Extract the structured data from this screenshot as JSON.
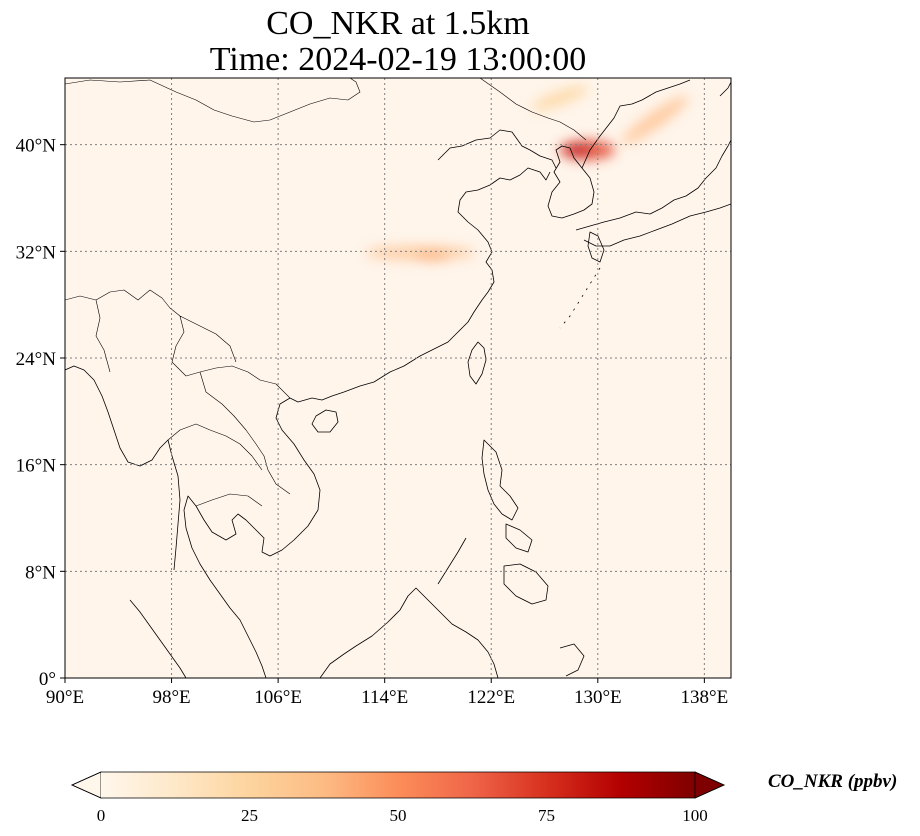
{
  "title_line1": "CO_NKR at 1.5km",
  "title_line2": "Time: 2024-02-19 13:00:00",
  "map": {
    "lon_range": [
      90,
      140
    ],
    "lat_range": [
      0,
      45
    ],
    "x_ticks": [
      {
        "value": 90,
        "label": "90°E"
      },
      {
        "value": 98,
        "label": "98°E"
      },
      {
        "value": 106,
        "label": "106°E"
      },
      {
        "value": 114,
        "label": "114°E"
      },
      {
        "value": 122,
        "label": "122°E"
      },
      {
        "value": 130,
        "label": "130°E"
      },
      {
        "value": 138,
        "label": "138°E"
      }
    ],
    "y_ticks": [
      {
        "value": 0,
        "label": "0°"
      },
      {
        "value": 8,
        "label": "8°N"
      },
      {
        "value": 16,
        "label": "16°N"
      },
      {
        "value": 24,
        "label": "24°N"
      },
      {
        "value": 32,
        "label": "32°N"
      },
      {
        "value": 40,
        "label": "40°N"
      }
    ],
    "gridlines": "dotted",
    "background_color": "#fff5eb",
    "plumes": [
      {
        "name": "korea-peninsula-hotspot",
        "lon": 129.5,
        "lat": 39.8,
        "value": 85
      },
      {
        "name": "northeast-china-band",
        "lon": 134,
        "lat": 42.5,
        "value": 30
      },
      {
        "name": "yellow-sea-band",
        "lon": 126.5,
        "lat": 42.5,
        "value": 15
      },
      {
        "name": "east-china-band",
        "lon": 117,
        "lat": 31.8,
        "value": 22
      }
    ]
  },
  "colorbar": {
    "label": "CO_NKR (ppbv)",
    "min": 0,
    "max": 100,
    "ticks": [
      {
        "value": 0,
        "label": "0"
      },
      {
        "value": 25,
        "label": "25"
      },
      {
        "value": 50,
        "label": "50"
      },
      {
        "value": 75,
        "label": "75"
      },
      {
        "value": 100,
        "label": "100"
      }
    ],
    "colormap": "OrRd",
    "colors": [
      "#fff7ec",
      "#fee8c8",
      "#fdd49e",
      "#fdbb84",
      "#fc8d59",
      "#ef6548",
      "#d7301f",
      "#b30000",
      "#7f0000"
    ],
    "extend": "both"
  }
}
